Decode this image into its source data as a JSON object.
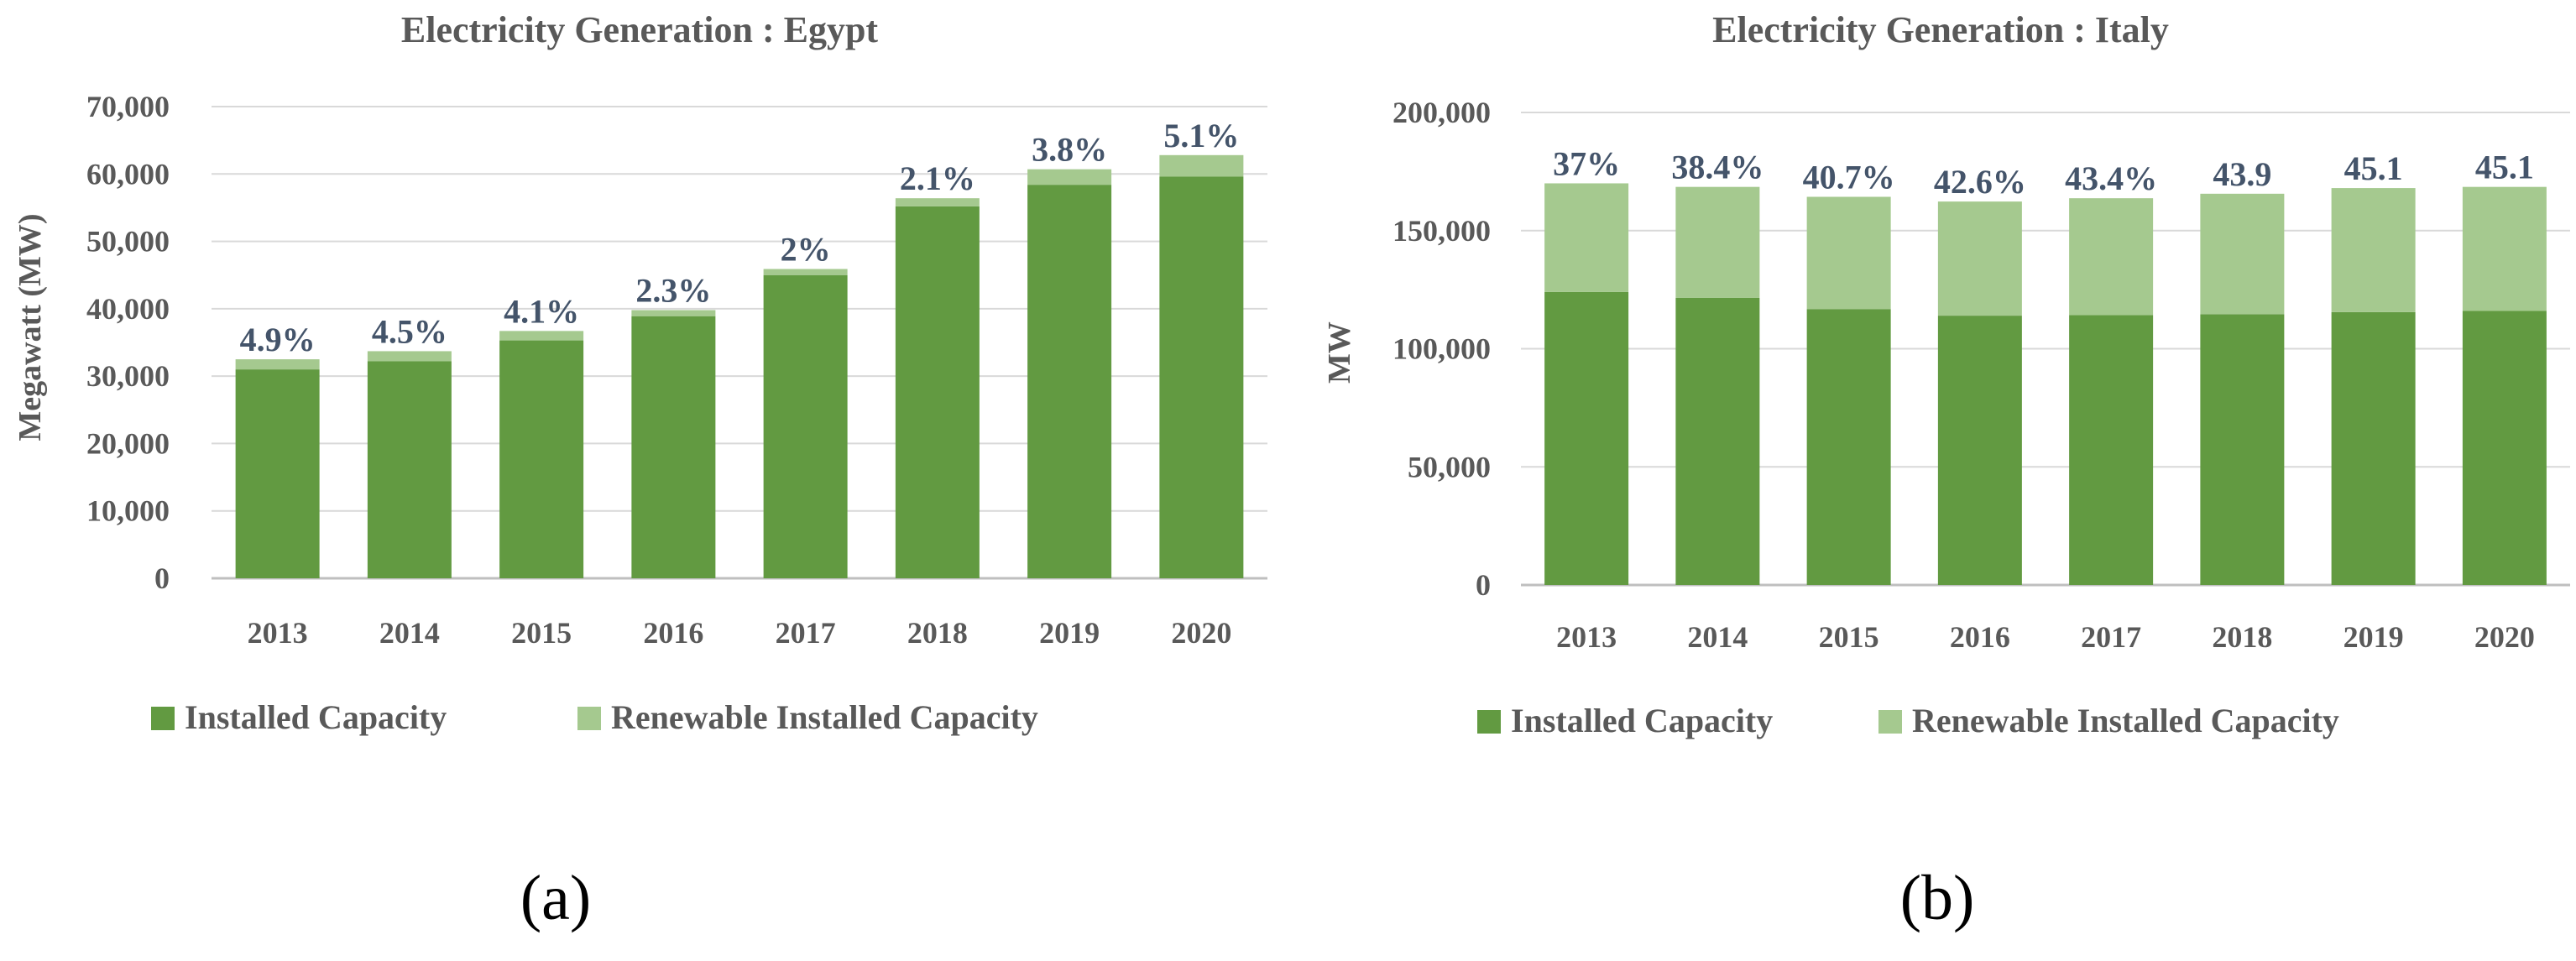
{
  "colors": {
    "installed": "#629a41",
    "renewable": "#a5c98f",
    "gridline": "#d9d9d9",
    "axis_line": "#bfbfbf"
  },
  "chart_data": [
    {
      "type": "bar",
      "stacked": true,
      "panel_label": "(a)",
      "title": "Electricity Generation : Egypt",
      "xlabel": "",
      "ylabel": "Megawatt (MW)",
      "ylim": [
        0,
        70000
      ],
      "yticks": [
        0,
        10000,
        20000,
        30000,
        40000,
        50000,
        60000,
        70000
      ],
      "ytick_labels": [
        "0",
        "10,000",
        "20,000",
        "30,000",
        "40,000",
        "50,000",
        "60,000",
        "70,000"
      ],
      "grid": true,
      "legend_position": "bottom-left",
      "categories": [
        "2013",
        "2014",
        "2015",
        "2016",
        "2017",
        "2018",
        "2019",
        "2020"
      ],
      "series": [
        {
          "name": "Installed Capacity",
          "values": [
            31000,
            32200,
            35300,
            38900,
            45000,
            55200,
            58400,
            59600
          ]
        },
        {
          "name": "Renewable Installed Capacity",
          "values": [
            1500,
            1500,
            1400,
            900,
            900,
            1200,
            2300,
            3200
          ]
        }
      ],
      "data_labels": [
        "4.9%",
        "4.5%",
        "4.1%",
        "2.3%",
        "2%",
        "2.1%",
        "3.8%",
        "5.1%"
      ]
    },
    {
      "type": "bar",
      "stacked": true,
      "panel_label": "(b)",
      "title": "Electricity Generation : Italy",
      "xlabel": "",
      "ylabel": "MW",
      "ylim": [
        0,
        200000
      ],
      "yticks": [
        0,
        50000,
        100000,
        150000,
        200000
      ],
      "ytick_labels": [
        "0",
        "50,000",
        "100,000",
        "150,000",
        "200,000"
      ],
      "grid": true,
      "legend_position": "bottom-left",
      "categories": [
        "2013",
        "2014",
        "2015",
        "2016",
        "2017",
        "2018",
        "2019",
        "2020"
      ],
      "series": [
        {
          "name": "Installed Capacity",
          "values": [
            124000,
            121500,
            116800,
            114000,
            114200,
            114600,
            115500,
            116000
          ]
        },
        {
          "name": "Renewable Installed Capacity",
          "values": [
            46000,
            47000,
            47500,
            48300,
            49500,
            51000,
            52500,
            52500
          ]
        }
      ],
      "data_labels": [
        "37%",
        "38.4%",
        "40.7%",
        "42.6%",
        "43.4%",
        "43.9",
        "45.1",
        "45.1"
      ]
    }
  ]
}
